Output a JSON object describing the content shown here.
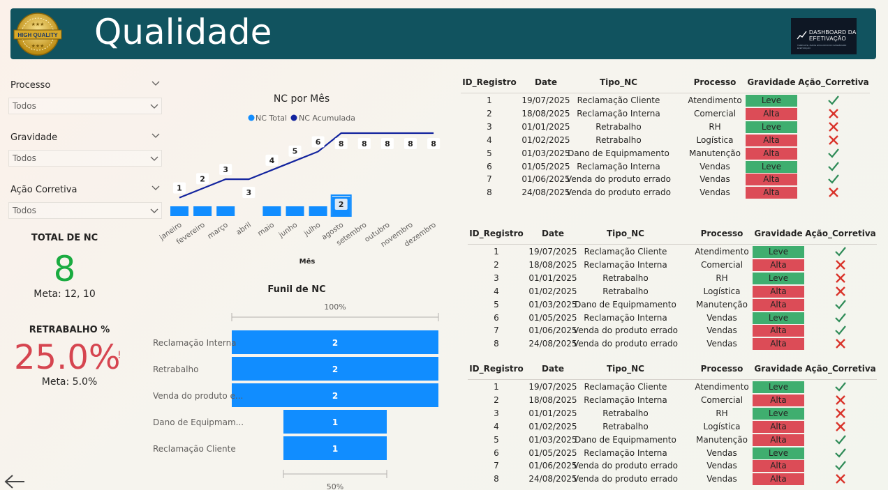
{
  "header": {
    "title": "Qualidade",
    "seal_text": "HIGH QUALITY",
    "logo_line1": "DASHBOARD DA",
    "logo_line2": "EFETIVAÇÃO",
    "logo_line3": "TEMPLATE • BAIXE EXCLUSIVO DO DASHBOARD EFETIVAÇÃO"
  },
  "filters": [
    {
      "label": "Processo",
      "value": "Todos"
    },
    {
      "label": "Gravidade",
      "value": "Todos"
    },
    {
      "label": "Ação Corretiva",
      "value": "Todos"
    }
  ],
  "kpis": {
    "total_title": "TOTAL DE NC",
    "total_value": "8",
    "total_meta": "Meta: 12, 10",
    "retrabalho_title": "RETRABALHO %",
    "retrabalho_value": "25.0%",
    "retrabalho_flag": "!",
    "retrabalho_meta": "Meta: 5.0%",
    "total_color": "#1aab40",
    "retrabalho_color": "#d64550"
  },
  "chart_data": [
    {
      "type": "bar+line",
      "title": "NC por Mês",
      "xlabel": "Mês",
      "categories": [
        "janeiro",
        "fevereiro",
        "março",
        "abril",
        "maio",
        "junho",
        "julho",
        "agosto",
        "setembro",
        "outubro",
        "novembro",
        "dezembro"
      ],
      "series": [
        {
          "name": "NC Total",
          "color": "#118dff",
          "values": [
            1,
            1,
            1,
            0,
            1,
            1,
            1,
            2,
            0,
            0,
            0,
            0
          ]
        },
        {
          "name": "NC Acumulada",
          "color": "#12239e",
          "values": [
            1,
            2,
            3,
            3,
            4,
            5,
            6,
            8,
            8,
            8,
            8,
            8
          ]
        }
      ],
      "legend_position": "top-center",
      "highlighted_bar_label": "2"
    },
    {
      "type": "funnel",
      "title": "Funil de NC",
      "top_label": "100%",
      "bottom_label": "50%",
      "categories": [
        "Reclamação Interna",
        "Retrabalho",
        "Venda do produto e...",
        "Dano de Equipmam...",
        "Reclamação Cliente"
      ],
      "values": [
        2,
        2,
        2,
        1,
        1
      ],
      "color": "#118dff"
    }
  ],
  "table": {
    "columns": [
      "ID_Registro",
      "Date",
      "Tipo_NC",
      "Processo",
      "Gravidade",
      "Ação_Corretiva"
    ],
    "rows": [
      {
        "id": "1",
        "date": "19/07/2025",
        "tipo": "Reclamação Cliente",
        "processo": "Atendimento",
        "gravidade": "Leve",
        "acao": "check"
      },
      {
        "id": "2",
        "date": "18/08/2025",
        "tipo": "Reclamação Interna",
        "processo": "Comercial",
        "gravidade": "Alta",
        "acao": "cross"
      },
      {
        "id": "3",
        "date": "01/01/2025",
        "tipo": "Retrabalho",
        "processo": "RH",
        "gravidade": "Leve",
        "acao": "cross"
      },
      {
        "id": "4",
        "date": "01/02/2025",
        "tipo": "Retrabalho",
        "processo": "Logística",
        "gravidade": "Alta",
        "acao": "cross"
      },
      {
        "id": "5",
        "date": "01/03/2025",
        "tipo": "Dano de Equipmamento",
        "processo": "Manutenção",
        "gravidade": "Alta",
        "acao": "check"
      },
      {
        "id": "6",
        "date": "01/05/2025",
        "tipo": "Reclamação Interna",
        "processo": "Vendas",
        "gravidade": "Leve",
        "acao": "check"
      },
      {
        "id": "7",
        "date": "01/06/2025",
        "tipo": "Venda do produto errado",
        "processo": "Vendas",
        "gravidade": "Alta",
        "acao": "check"
      },
      {
        "id": "8",
        "date": "24/08/2025",
        "tipo": "Venda do produto errado",
        "processo": "Vendas",
        "gravidade": "Alta",
        "acao": "cross"
      }
    ]
  },
  "colors": {
    "header_bg": "#11535f",
    "leve": "#3fae6f",
    "alta": "#dc4c57",
    "check": "#2e8b57",
    "cross": "#d9342b"
  },
  "icons": {
    "back": "back-arrow-icon",
    "chevron": "chevron-down-icon"
  }
}
